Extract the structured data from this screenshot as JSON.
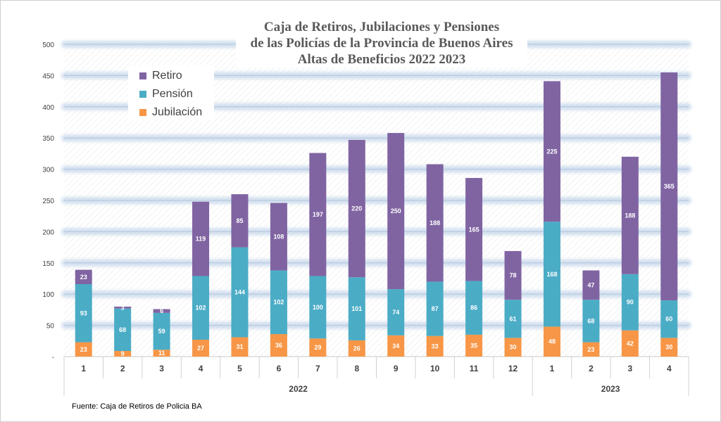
{
  "title_lines": [
    "Caja de Retiros, Jubilaciones y Pensiones",
    "de las Policías de la Provincia de Buenos Aires",
    "Altas de Beneficios 2022  2023"
  ],
  "source": "Fuente: Caja de Retiros de Policia BA",
  "colors": {
    "jubilacion": "#F79646",
    "pension": "#4BACC6",
    "retiro": "#8064A2",
    "grid_band": "#c5d6ea",
    "axis_text": "#404040"
  },
  "legend": [
    {
      "label": "Retiro",
      "color": "#8064A2"
    },
    {
      "label": "Pensión",
      "color": "#4BACC6"
    },
    {
      "label": "Jubilación",
      "color": "#F79646"
    }
  ],
  "chart_data": {
    "type": "bar",
    "stacked": true,
    "categories": [
      "1",
      "2",
      "3",
      "4",
      "5",
      "6",
      "7",
      "8",
      "9",
      "10",
      "11",
      "12",
      "1",
      "2",
      "3",
      "4"
    ],
    "groups": [
      {
        "label": "2022",
        "count": 12
      },
      {
        "label": "2023",
        "count": 4
      }
    ],
    "series": [
      {
        "name": "Jubilación",
        "values": [
          23,
          9,
          11,
          27,
          31,
          36,
          29,
          26,
          34,
          33,
          35,
          30,
          48,
          23,
          42,
          30
        ]
      },
      {
        "name": "Pensión",
        "values": [
          93,
          68,
          59,
          102,
          144,
          102,
          100,
          101,
          74,
          87,
          86,
          61,
          168,
          68,
          90,
          60
        ]
      },
      {
        "name": "Retiro",
        "values": [
          23,
          3,
          6,
          119,
          85,
          108,
          197,
          220,
          250,
          188,
          165,
          78,
          225,
          47,
          188,
          365
        ]
      }
    ],
    "yticks": [
      "-",
      "50",
      "100",
      "150",
      "200",
      "250",
      "300",
      "350",
      "400",
      "450",
      "500"
    ],
    "ylim": [
      0,
      500
    ],
    "grid": true,
    "legend_position": "top-left"
  }
}
